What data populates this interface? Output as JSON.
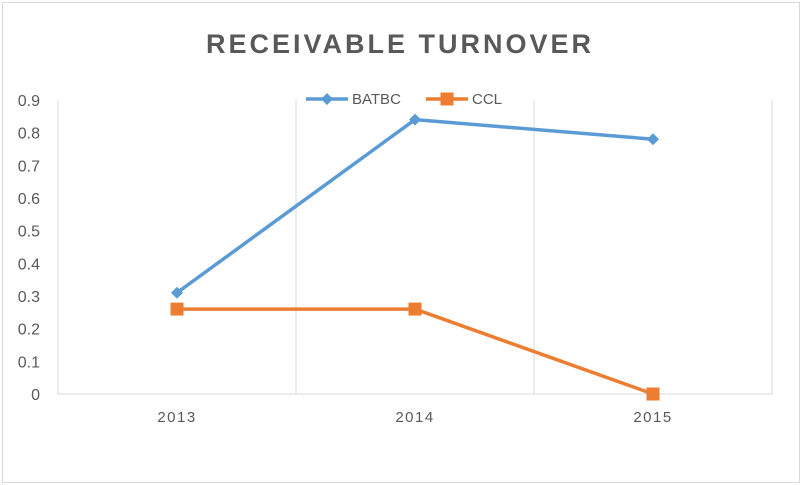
{
  "chart_data": {
    "type": "line",
    "title": "RECEIVABLE TURNOVER",
    "categories": [
      "2013",
      "2014",
      "2015"
    ],
    "series": [
      {
        "name": "BATBC",
        "values": [
          0.31,
          0.84,
          0.78
        ],
        "color": "#5b9bd5",
        "marker": "diamond"
      },
      {
        "name": "CCL",
        "values": [
          0.26,
          0.26,
          0.0
        ],
        "color": "#ed7d31",
        "marker": "square"
      }
    ],
    "ylim": [
      0,
      0.9
    ],
    "yticks": [
      "0",
      "0.1",
      "0.2",
      "0.3",
      "0.4",
      "0.5",
      "0.6",
      "0.7",
      "0.8",
      "0.9"
    ],
    "grid": "vertical",
    "legend_position": "top"
  }
}
